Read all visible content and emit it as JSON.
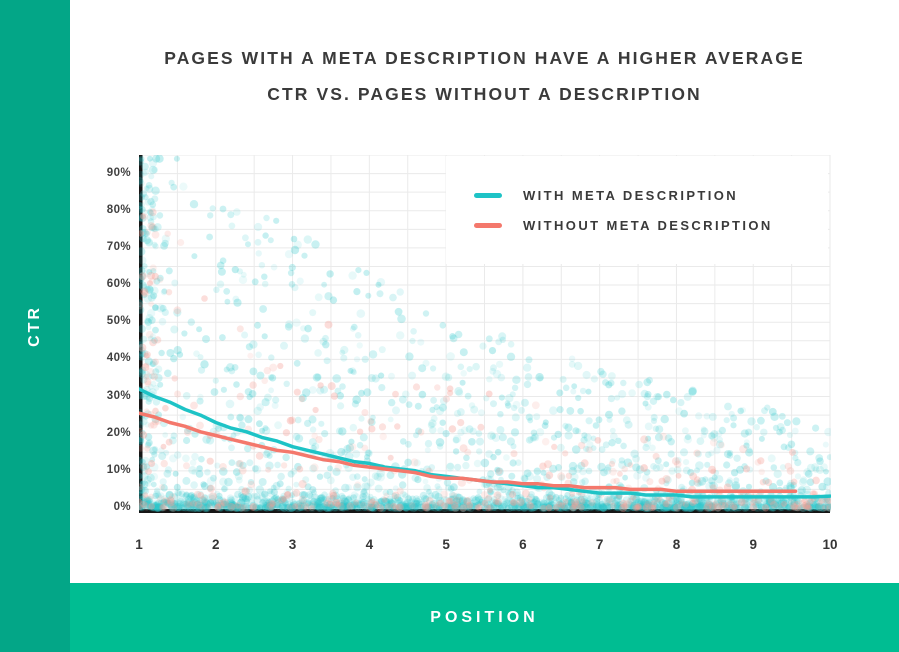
{
  "header": {
    "line1": "PAGES WITH A META DESCRIPTION HAVE A HIGHER AVERAGE",
    "line2": "CTR VS. PAGES WITHOUT A DESCRIPTION"
  },
  "sidebar": {
    "label": "CTR",
    "color": "#03A687"
  },
  "footer": {
    "label": "POSITION",
    "color": "#00BD92"
  },
  "chart_data": {
    "type": "scatter",
    "title": "PAGES WITH A META DESCRIPTION HAVE A HIGHER AVERAGE CTR VS. PAGES WITHOUT A DESCRIPTION",
    "xlabel": "POSITION",
    "ylabel": "CTR",
    "xlim": [
      1,
      10
    ],
    "ylim": [
      0,
      95
    ],
    "x_ticks": [
      "1",
      "2",
      "3",
      "4",
      "5",
      "6",
      "7",
      "8",
      "9",
      "10"
    ],
    "y_ticks": {
      "values": [
        0,
        10,
        20,
        30,
        40,
        50,
        60,
        70,
        80,
        90
      ],
      "labels": [
        "0%",
        "10%",
        "20%",
        "30%",
        "40%",
        "50%",
        "60%",
        "70%",
        "80%",
        "90%"
      ]
    },
    "grid": {
      "x_step": 0.5,
      "y_step": 5,
      "color": "#eaeaea",
      "on": true
    },
    "axis_color": "#161616",
    "legend": {
      "position": "top-right",
      "items": [
        {
          "label": "WITH META DESCRIPTION",
          "color": "#1EC3C6"
        },
        {
          "label": "WITHOUT META DESCRIPTION",
          "color": "#F4786C"
        }
      ]
    },
    "series": [
      {
        "name": "WITH META DESCRIPTION",
        "kind": "trend-line",
        "color": "#1EC3C6",
        "x": [
          1,
          2,
          3,
          4,
          5,
          6,
          7,
          8,
          9,
          10
        ],
        "values": [
          32,
          23,
          16.5,
          11.8,
          8.6,
          6.0,
          4.2,
          3.3,
          2.8,
          3.2
        ]
      },
      {
        "name": "WITHOUT META DESCRIPTION",
        "kind": "trend-line",
        "color": "#F4786C",
        "x": [
          1,
          2,
          3,
          4,
          5,
          6,
          7,
          8,
          9,
          9.55
        ],
        "values": [
          25.5,
          19.5,
          14.8,
          10.9,
          8.2,
          6.6,
          5.4,
          4.7,
          4.3,
          4.5
        ]
      }
    ],
    "scatter_cloud": {
      "seed": 20177,
      "series": [
        {
          "name": "with-meta-points",
          "color": "#2fc7cb",
          "count": 2400,
          "opacity": [
            0.09,
            0.3
          ],
          "radius": [
            2.9,
            4.3
          ],
          "env_amp": 100,
          "env_decay": 5.0,
          "env_base": 8,
          "shape": 2.6,
          "bottom_frac": 0.36,
          "axis_col_frac": 0.06,
          "col_max": 92
        },
        {
          "name": "without-meta-points",
          "color": "#f59f95",
          "count": 440,
          "opacity": [
            0.14,
            0.38
          ],
          "radius": [
            2.9,
            4.1
          ],
          "env_amp": 78,
          "env_decay": 4.2,
          "env_base": 6,
          "shape": 2.4,
          "bottom_frac": 0.28,
          "axis_col_frac": 0.07,
          "col_max": 80
        }
      ]
    }
  }
}
